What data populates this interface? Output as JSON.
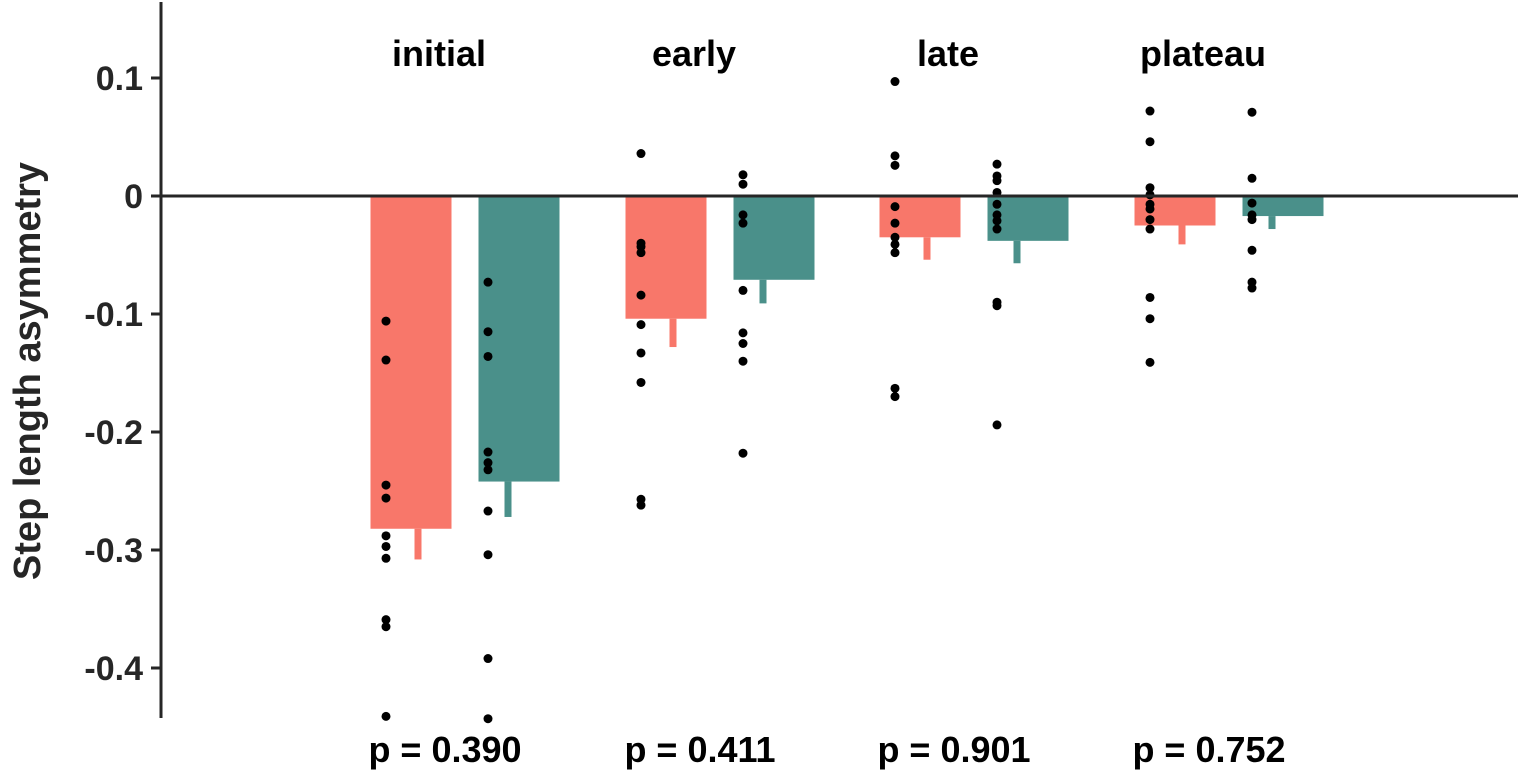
{
  "chart_data": {
    "type": "bar",
    "ylabel": "Step length asymmetry",
    "ylim": [
      -0.44,
      0.165
    ],
    "yticks": [
      0.1,
      0,
      -0.1,
      -0.2,
      -0.3,
      -0.4
    ],
    "ytick_labels": [
      "0.1",
      "0",
      "-0.1",
      "-0.2",
      "-0.3",
      "-0.4"
    ],
    "categories": [
      "initial",
      "early",
      "late",
      "plateau"
    ],
    "p_values": [
      "p = 0.390",
      "p = 0.411",
      "p = 0.901",
      "p = 0.752"
    ],
    "colors": {
      "series1": "#f8776a",
      "series2": "#4a908a",
      "points": "#000000",
      "axis": "#262626"
    },
    "series": [
      {
        "values": [
          -0.282,
          -0.104,
          -0.035,
          -0.025
        ],
        "error": [
          0.026,
          0.024,
          0.019,
          0.016
        ],
        "points": [
          [
            -0.106,
            -0.139,
            -0.245,
            -0.256,
            -0.288,
            -0.297,
            -0.307,
            -0.359,
            -0.365,
            -0.441
          ],
          [
            0.036,
            -0.04,
            -0.043,
            -0.048,
            -0.084,
            -0.109,
            -0.133,
            -0.158,
            -0.257,
            -0.262
          ],
          [
            0.097,
            0.034,
            0.026,
            -0.009,
            -0.023,
            -0.035,
            -0.041,
            -0.048,
            -0.163,
            -0.17
          ],
          [
            0.072,
            0.046,
            0.007,
            0.001,
            -0.007,
            -0.011,
            -0.02,
            -0.028,
            -0.086,
            -0.104,
            -0.141
          ]
        ]
      },
      {
        "values": [
          -0.242,
          -0.071,
          -0.038,
          -0.017
        ],
        "error": [
          0.03,
          0.02,
          0.019,
          0.011
        ],
        "points": [
          [
            -0.073,
            -0.115,
            -0.136,
            -0.217,
            -0.226,
            -0.232,
            -0.267,
            -0.304,
            -0.392,
            -0.443
          ],
          [
            0.018,
            0.01,
            -0.016,
            -0.023,
            -0.08,
            -0.116,
            -0.125,
            -0.14,
            -0.218
          ],
          [
            0.027,
            0.017,
            0.013,
            0.003,
            -0.007,
            -0.016,
            -0.021,
            -0.028,
            -0.09,
            -0.093,
            -0.194
          ],
          [
            0.071,
            0.015,
            -0.006,
            -0.016,
            -0.02,
            -0.046,
            -0.073,
            -0.078
          ]
        ]
      }
    ]
  }
}
